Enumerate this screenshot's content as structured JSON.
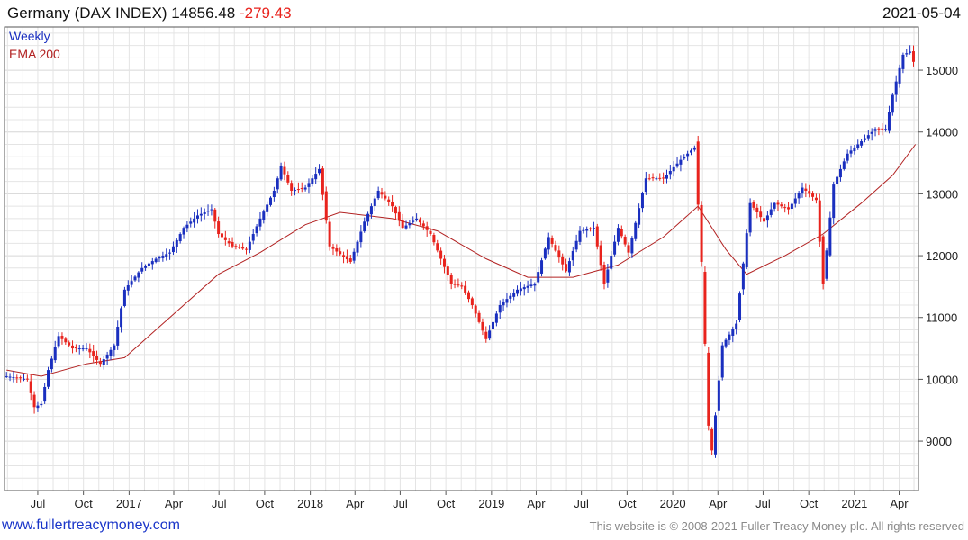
{
  "header": {
    "title": "Germany (DAX INDEX) 14856.48",
    "change": "-279.43",
    "date": "2021-05-04"
  },
  "footer": {
    "website": "www.fullertreacymoney.com",
    "copyright": "This website is © 2008-2021 Fuller Treacy Money plc. All rights reserved"
  },
  "colors": {
    "up": "#1a2fbf",
    "down": "#e8231d",
    "ema": "#b22222",
    "grid": "#e4e4e4",
    "change": "#e8231d"
  },
  "chart_data": {
    "type": "candlestick",
    "title": "Germany (DAX INDEX) 14856.48 -279.43",
    "legend": [
      "Weekly",
      "EMA 200"
    ],
    "legend_position": "top-left",
    "grid": true,
    "y_axis_side": "right",
    "ylim": [
      8200,
      15700
    ],
    "y_ticks": [
      9000,
      10000,
      11000,
      12000,
      13000,
      14000,
      15000
    ],
    "x_range": [
      "2016-04-25",
      "2021-05-10"
    ],
    "x_ticks": [
      {
        "label": "Jul",
        "date": "2016-07-01"
      },
      {
        "label": "Oct",
        "date": "2016-10-01"
      },
      {
        "label": "2017",
        "date": "2017-01-01"
      },
      {
        "label": "Apr",
        "date": "2017-04-01"
      },
      {
        "label": "Jul",
        "date": "2017-07-01"
      },
      {
        "label": "Oct",
        "date": "2017-10-01"
      },
      {
        "label": "2018",
        "date": "2018-01-01"
      },
      {
        "label": "Apr",
        "date": "2018-04-01"
      },
      {
        "label": "Jul",
        "date": "2018-07-01"
      },
      {
        "label": "Oct",
        "date": "2018-10-01"
      },
      {
        "label": "2019",
        "date": "2019-01-01"
      },
      {
        "label": "Apr",
        "date": "2019-04-01"
      },
      {
        "label": "Jul",
        "date": "2019-07-01"
      },
      {
        "label": "Oct",
        "date": "2019-10-01"
      },
      {
        "label": "2020",
        "date": "2020-01-01"
      },
      {
        "label": "Apr",
        "date": "2020-04-01"
      },
      {
        "label": "Jul",
        "date": "2020-07-01"
      },
      {
        "label": "Oct",
        "date": "2020-10-01"
      },
      {
        "label": "2021",
        "date": "2021-01-01"
      },
      {
        "label": "Apr",
        "date": "2021-04-01"
      }
    ],
    "close_path": [
      [
        "2016-04-29",
        10050
      ],
      [
        "2016-06-10",
        10000
      ],
      [
        "2016-06-24",
        9550
      ],
      [
        "2016-07-08",
        9600
      ],
      [
        "2016-07-22",
        10150
      ],
      [
        "2016-08-12",
        10700
      ],
      [
        "2016-09-09",
        10500
      ],
      [
        "2016-10-07",
        10500
      ],
      [
        "2016-11-04",
        10250
      ],
      [
        "2016-12-02",
        10550
      ],
      [
        "2016-12-23",
        11450
      ],
      [
        "2017-01-27",
        11800
      ],
      [
        "2017-02-24",
        11950
      ],
      [
        "2017-03-24",
        12050
      ],
      [
        "2017-04-21",
        12450
      ],
      [
        "2017-05-19",
        12650
      ],
      [
        "2017-06-16",
        12750
      ],
      [
        "2017-06-30",
        12350
      ],
      [
        "2017-07-28",
        12150
      ],
      [
        "2017-08-25",
        12100
      ],
      [
        "2017-09-22",
        12600
      ],
      [
        "2017-10-20",
        13050
      ],
      [
        "2017-11-03",
        13450
      ],
      [
        "2017-11-24",
        13050
      ],
      [
        "2017-12-22",
        13100
      ],
      [
        "2018-01-19",
        13400
      ],
      [
        "2018-02-09",
        12150
      ],
      [
        "2018-03-23",
        11900
      ],
      [
        "2018-04-20",
        12550
      ],
      [
        "2018-05-18",
        13050
      ],
      [
        "2018-06-15",
        12800
      ],
      [
        "2018-07-06",
        12450
      ],
      [
        "2018-08-03",
        12600
      ],
      [
        "2018-08-31",
        12350
      ],
      [
        "2018-10-12",
        11550
      ],
      [
        "2018-11-02",
        11500
      ],
      [
        "2018-11-23",
        11200
      ],
      [
        "2018-12-21",
        10650
      ],
      [
        "2019-01-18",
        11200
      ],
      [
        "2019-02-22",
        11450
      ],
      [
        "2019-03-29",
        11550
      ],
      [
        "2019-04-26",
        12300
      ],
      [
        "2019-05-31",
        11750
      ],
      [
        "2019-06-28",
        12400
      ],
      [
        "2019-07-26",
        12450
      ],
      [
        "2019-08-16",
        11550
      ],
      [
        "2019-09-13",
        12450
      ],
      [
        "2019-10-04",
        12050
      ],
      [
        "2019-11-08",
        13250
      ],
      [
        "2019-12-13",
        13250
      ],
      [
        "2020-01-17",
        13550
      ],
      [
        "2020-02-14",
        13750
      ],
      [
        "2020-02-28",
        11900
      ],
      [
        "2020-03-13",
        9250
      ],
      [
        "2020-03-20",
        8850
      ],
      [
        "2020-04-10",
        10550
      ],
      [
        "2020-05-08",
        10900
      ],
      [
        "2020-06-05",
        12850
      ],
      [
        "2020-07-03",
        12550
      ],
      [
        "2020-07-24",
        12850
      ],
      [
        "2020-08-21",
        12750
      ],
      [
        "2020-09-18",
        13100
      ],
      [
        "2020-10-16",
        12900
      ],
      [
        "2020-10-30",
        11550
      ],
      [
        "2020-11-20",
        13150
      ],
      [
        "2020-12-18",
        13650
      ],
      [
        "2021-01-15",
        13850
      ],
      [
        "2021-02-12",
        14050
      ],
      [
        "2021-03-05",
        14050
      ],
      [
        "2021-03-19",
        14600
      ],
      [
        "2021-04-09",
        15250
      ],
      [
        "2021-04-23",
        15300
      ],
      [
        "2021-04-30",
        15135
      ],
      [
        "2021-05-04",
        14856.48
      ]
    ],
    "ema_200": [
      [
        "2016-04-29",
        10150
      ],
      [
        "2016-07-08",
        10050
      ],
      [
        "2016-10-07",
        10250
      ],
      [
        "2016-12-23",
        10350
      ],
      [
        "2017-03-24",
        11000
      ],
      [
        "2017-06-30",
        11700
      ],
      [
        "2017-09-22",
        12050
      ],
      [
        "2017-12-22",
        12500
      ],
      [
        "2018-03-02",
        12700
      ],
      [
        "2018-06-15",
        12600
      ],
      [
        "2018-09-14",
        12400
      ],
      [
        "2018-12-21",
        11950
      ],
      [
        "2019-03-15",
        11650
      ],
      [
        "2019-06-14",
        11650
      ],
      [
        "2019-09-13",
        11850
      ],
      [
        "2019-12-13",
        12300
      ],
      [
        "2020-02-21",
        12800
      ],
      [
        "2020-04-17",
        12100
      ],
      [
        "2020-05-29",
        11700
      ],
      [
        "2020-08-14",
        12000
      ],
      [
        "2020-10-30",
        12350
      ],
      [
        "2021-01-15",
        12850
      ],
      [
        "2021-03-19",
        13300
      ],
      [
        "2021-05-04",
        13800
      ]
    ]
  }
}
